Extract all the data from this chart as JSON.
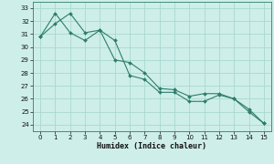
{
  "line1_x": [
    0,
    1,
    2,
    3,
    4,
    5,
    6,
    7,
    8,
    9,
    10,
    11,
    12,
    13,
    14,
    15
  ],
  "line1_y": [
    30.8,
    31.8,
    32.6,
    31.1,
    31.3,
    30.5,
    27.8,
    27.5,
    26.5,
    26.5,
    25.8,
    25.8,
    26.3,
    26.0,
    25.2,
    24.1
  ],
  "line2_x": [
    0,
    1,
    2,
    3,
    4,
    5,
    6,
    7,
    8,
    9,
    10,
    11,
    12,
    13,
    14,
    15
  ],
  "line2_y": [
    30.8,
    32.6,
    31.1,
    30.5,
    31.3,
    29.0,
    28.8,
    28.0,
    26.8,
    26.7,
    26.2,
    26.4,
    26.4,
    26.0,
    25.0,
    24.1
  ],
  "line_color": "#2e7d6b",
  "bg_color": "#ceeee9",
  "grid_color": "#a8d8d0",
  "xlabel": "Humidex (Indice chaleur)",
  "ylim": [
    23.5,
    33.5
  ],
  "xlim": [
    -0.5,
    15.5
  ],
  "yticks": [
    24,
    25,
    26,
    27,
    28,
    29,
    30,
    31,
    32,
    33
  ],
  "xticks": [
    0,
    1,
    2,
    3,
    4,
    5,
    6,
    7,
    8,
    9,
    10,
    11,
    12,
    13,
    14,
    15
  ],
  "tick_fontsize": 5,
  "xlabel_fontsize": 6
}
